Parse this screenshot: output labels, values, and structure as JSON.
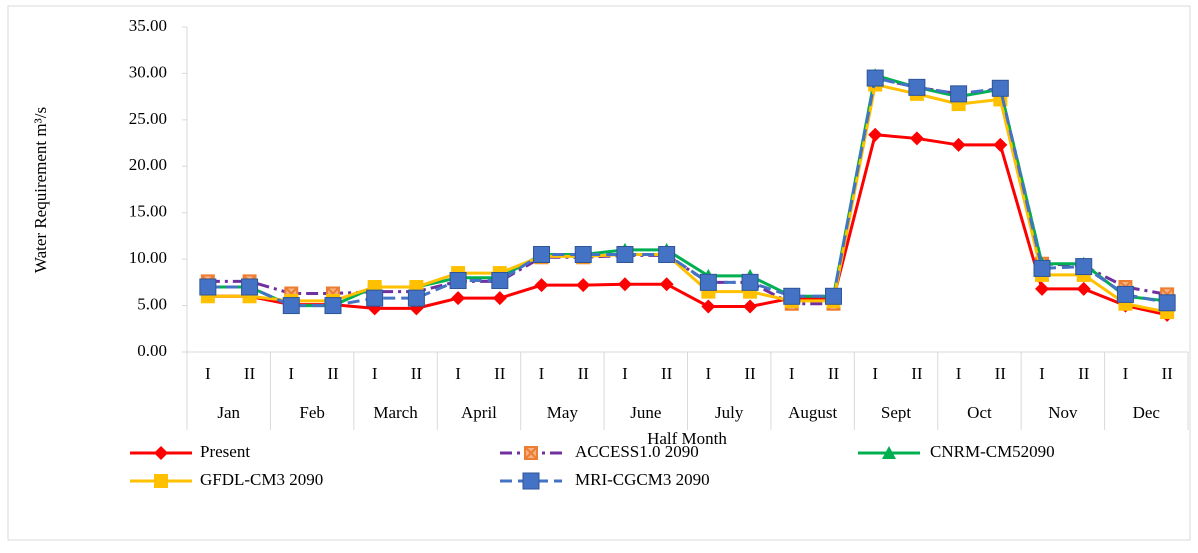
{
  "chart_data": {
    "type": "line",
    "y_label": "Water Requirement m³/s",
    "x_label": "Half Month",
    "categories": [
      "I",
      "II",
      "I",
      "II",
      "I",
      "II",
      "I",
      "II",
      "I",
      "II",
      "I",
      "II",
      "I",
      "II",
      "I",
      "II",
      "I",
      "II",
      "I",
      "II",
      "I",
      "II",
      "I",
      "II"
    ],
    "category_groups": [
      "Jan",
      "Feb",
      "March",
      "April",
      "May",
      "June",
      "July",
      "August",
      "Sept",
      "Oct",
      "Nov",
      "Dec"
    ],
    "ylim": [
      0,
      35
    ],
    "yticks": [
      {
        "value": 0,
        "label": "0.00"
      },
      {
        "value": 5,
        "label": "5.00"
      },
      {
        "value": 10,
        "label": "10.00"
      },
      {
        "value": 15,
        "label": "15.00"
      },
      {
        "value": 20,
        "label": "20.00"
      },
      {
        "value": 25,
        "label": "25.00"
      },
      {
        "value": 30,
        "label": "30.00"
      },
      {
        "value": 35,
        "label": "35.00"
      }
    ],
    "series": [
      {
        "name": "Present",
        "color": "#ff0000",
        "marker": "diamond",
        "marker_color": "#ff0000",
        "dash": "solid",
        "values": [
          6.0,
          6.0,
          5.1,
          5.1,
          4.7,
          4.7,
          5.8,
          5.8,
          7.2,
          7.2,
          7.3,
          7.3,
          4.9,
          4.9,
          5.8,
          5.8,
          23.4,
          23.0,
          22.3,
          22.3,
          6.8,
          6.8,
          5.0,
          4.0
        ]
      },
      {
        "name": "ACCESS1.0 2090",
        "color": "#7030a0",
        "marker": "xbox",
        "marker_color": "#ed7d31",
        "dash": "dashdot",
        "values": [
          7.6,
          7.6,
          6.3,
          6.3,
          6.5,
          6.5,
          7.6,
          7.6,
          10.2,
          10.2,
          10.4,
          10.4,
          7.5,
          7.5,
          5.2,
          5.2,
          29.5,
          28.5,
          27.8,
          28.3,
          9.5,
          9.3,
          7.0,
          6.2
        ]
      },
      {
        "name": "CNRM-CM52090",
        "color": "#00b050",
        "marker": "triangle",
        "marker_color": "#00b050",
        "dash": "solid",
        "values": [
          7.0,
          7.0,
          5.0,
          5.0,
          7.0,
          7.0,
          8.0,
          8.0,
          10.5,
          10.5,
          11.0,
          11.0,
          8.2,
          8.2,
          6.0,
          6.0,
          29.8,
          28.5,
          27.5,
          28.3,
          9.5,
          9.5,
          6.0,
          5.5
        ]
      },
      {
        "name": "GFDL-CM3 2090",
        "color": "#ffc000",
        "marker": "square",
        "marker_color": "#ffc000",
        "dash": "solid",
        "values": [
          6.0,
          6.0,
          5.5,
          5.5,
          7.0,
          7.0,
          8.5,
          8.5,
          10.3,
          10.3,
          10.5,
          10.5,
          6.5,
          6.5,
          5.5,
          5.5,
          28.8,
          27.8,
          26.7,
          27.2,
          8.3,
          8.3,
          5.2,
          4.3
        ]
      },
      {
        "name": "MRI-CGCM3 2090",
        "color": "#4472c4",
        "marker": "bigsquare",
        "marker_color": "#4472c4",
        "dash": "dash",
        "values": [
          7.0,
          7.0,
          5.0,
          5.0,
          5.8,
          5.8,
          7.7,
          7.7,
          10.5,
          10.5,
          10.5,
          10.5,
          7.5,
          7.5,
          6.0,
          6.0,
          29.5,
          28.5,
          27.8,
          28.4,
          9.0,
          9.2,
          6.2,
          5.3
        ]
      }
    ]
  }
}
